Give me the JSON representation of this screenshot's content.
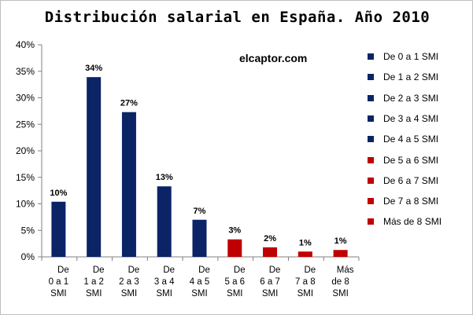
{
  "chart_data": {
    "type": "bar",
    "title": "Distribución salarial en España. Año 2010",
    "watermark": "elcaptor.com",
    "xlabel": "",
    "ylabel": "",
    "ylim": [
      0,
      40
    ],
    "y_ticks": [
      "0%",
      "5%",
      "10%",
      "15%",
      "20%",
      "25%",
      "30%",
      "35%",
      "40%"
    ],
    "grid": false,
    "legend_position": "right",
    "categories": [
      [
        "De",
        "0 a 1",
        "SMI"
      ],
      [
        "De",
        "1 a 2",
        "SMI"
      ],
      [
        "De",
        "2 a 3",
        "SMI"
      ],
      [
        "De",
        "3 a 4",
        "SMI"
      ],
      [
        "De",
        "4 a 5",
        "SMI"
      ],
      [
        "De",
        "5 a 6",
        "SMI"
      ],
      [
        "De",
        "6 a 7",
        "SMI"
      ],
      [
        "De",
        "7 a 8",
        "SMI"
      ],
      [
        "Más",
        "de 8",
        "SMI"
      ]
    ],
    "values": [
      10.4,
      33.9,
      27.3,
      13.3,
      7.0,
      3.3,
      1.8,
      1.0,
      1.3
    ],
    "data_labels": [
      "10%",
      "34%",
      "27%",
      "13%",
      "7%",
      "3%",
      "2%",
      "1%",
      "1%"
    ],
    "series": [
      {
        "name": "De 0 a 1 SMI",
        "color": "#0b2466"
      },
      {
        "name": "De 1 a 2 SMI",
        "color": "#0b2466"
      },
      {
        "name": "De 2 a 3 SMI",
        "color": "#0b2466"
      },
      {
        "name": "De 3 a 4 SMI",
        "color": "#0b2466"
      },
      {
        "name": "De 4 a 5 SMI",
        "color": "#0b2466"
      },
      {
        "name": "De 5 a 6 SMI",
        "color": "#c00000"
      },
      {
        "name": "De 6 a 7 SMI",
        "color": "#c00000"
      },
      {
        "name": "De 7 a 8 SMI",
        "color": "#c00000"
      },
      {
        "name": "Más de 8 SMI",
        "color": "#c00000"
      }
    ]
  }
}
